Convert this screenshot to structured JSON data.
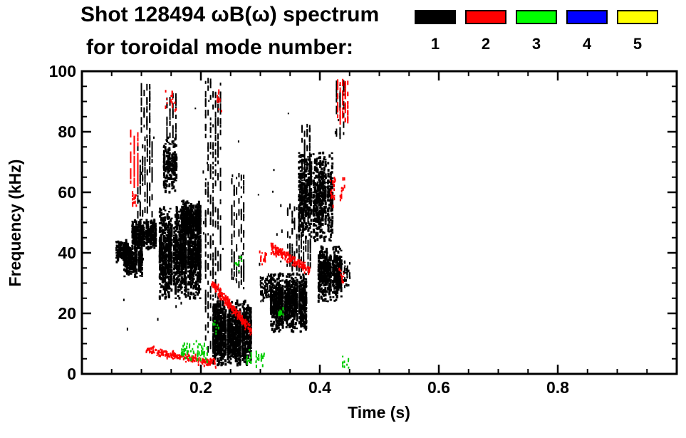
{
  "title_line1": "Shot 128494 ωB(ω) spectrum",
  "title_line2": "for toroidal mode number:",
  "legend": {
    "modes": [
      {
        "label": "1",
        "color": "#000000"
      },
      {
        "label": "2",
        "color": "#ff0000"
      },
      {
        "label": "3",
        "color": "#00ff00"
      },
      {
        "label": "4",
        "color": "#0000ff"
      },
      {
        "label": "5",
        "color": "#ffff00"
      }
    ]
  },
  "axes": {
    "x": {
      "label": "Time (s)",
      "range": [
        0,
        1.0
      ],
      "major_ticks": [
        0.2,
        0.4,
        0.6,
        0.8
      ],
      "tick_labels": [
        "0.2",
        "0.4",
        "0.6",
        "0.8"
      ],
      "minor_step": 0.05
    },
    "y": {
      "label": "Frequency (kHz)",
      "range": [
        0,
        100
      ],
      "major_ticks": [
        0,
        20,
        40,
        60,
        80,
        100
      ],
      "tick_labels": [
        "0",
        "20",
        "40",
        "60",
        "80",
        "100"
      ],
      "minor_step": 5
    }
  },
  "chart_data": {
    "type": "scatter",
    "title": "Shot 128494 ωB(ω) spectrum for toroidal mode number 1-5",
    "xlabel": "Time (s)",
    "ylabel": "Frequency (kHz)",
    "xlim": [
      0,
      1.0
    ],
    "ylim": [
      0,
      100
    ],
    "grid": false,
    "legend_position": "top-right",
    "series": [
      {
        "name": "n=1",
        "color": "#000000",
        "clusters": [
          {
            "shape": "blob",
            "t": [
              0.055,
              0.078
            ],
            "f": [
              37,
              44
            ],
            "n": 140,
            "size": 3
          },
          {
            "shape": "blob",
            "t": [
              0.068,
              0.102
            ],
            "f": [
              32,
              43
            ],
            "n": 380,
            "size": 3
          },
          {
            "shape": "blob",
            "t": [
              0.082,
              0.125
            ],
            "f": [
              41,
              51
            ],
            "n": 480,
            "size": 3
          },
          {
            "shape": "vstreak",
            "t": [
              0.094,
              0.118
            ],
            "f": [
              52,
              78
            ],
            "n": 110,
            "size": 2
          },
          {
            "shape": "vstreak",
            "t": [
              0.1,
              0.114
            ],
            "f": [
              78,
              95
            ],
            "n": 50,
            "size": 2
          },
          {
            "shape": "blob",
            "t": [
              0.135,
              0.162
            ],
            "f": [
              60,
              78
            ],
            "n": 260,
            "size": 3
          },
          {
            "shape": "blob",
            "t": [
              0.128,
              0.2
            ],
            "f": [
              25,
              55
            ],
            "n": 1700,
            "size": 3
          },
          {
            "shape": "vstreak",
            "t": [
              0.143,
              0.158
            ],
            "f": [
              78,
              92
            ],
            "n": 40,
            "size": 2
          },
          {
            "shape": "blob",
            "t": [
              0.165,
              0.2
            ],
            "f": [
              46,
              57
            ],
            "n": 420,
            "size": 3
          },
          {
            "shape": "vstreak",
            "t": [
              0.208,
              0.233
            ],
            "f": [
              8,
              97
            ],
            "n": 280,
            "size": 2
          },
          {
            "shape": "blob",
            "t": [
              0.218,
              0.285
            ],
            "f": [
              3,
              24
            ],
            "n": 1500,
            "size": 3
          },
          {
            "shape": "vstreak",
            "t": [
              0.252,
              0.272
            ],
            "f": [
              28,
              66
            ],
            "n": 100,
            "size": 2
          },
          {
            "shape": "blob",
            "t": [
              0.298,
              0.318
            ],
            "f": [
              24,
              33
            ],
            "n": 90,
            "size": 2
          },
          {
            "shape": "blob",
            "t": [
              0.315,
              0.378
            ],
            "f": [
              14,
              33
            ],
            "n": 1150,
            "size": 3
          },
          {
            "shape": "vstreak",
            "t": [
              0.346,
              0.384
            ],
            "f": [
              34,
              56
            ],
            "n": 120,
            "size": 2
          },
          {
            "shape": "blob",
            "t": [
              0.362,
              0.422
            ],
            "f": [
              44,
              73
            ],
            "n": 950,
            "size": 3
          },
          {
            "shape": "vstreak",
            "t": [
              0.37,
              0.383
            ],
            "f": [
              58,
              82
            ],
            "n": 70,
            "size": 2
          },
          {
            "shape": "blob",
            "t": [
              0.395,
              0.437
            ],
            "f": [
              24,
              42
            ],
            "n": 620,
            "size": 3
          },
          {
            "shape": "vstreak",
            "t": [
              0.428,
              0.44
            ],
            "f": [
              78,
              97
            ],
            "n": 40,
            "size": 2
          },
          {
            "shape": "blob",
            "t": [
              0.433,
              0.452
            ],
            "f": [
              28,
              38
            ],
            "n": 50,
            "size": 2
          },
          {
            "shape": "blob",
            "t": [
              0.05,
              0.47
            ],
            "f": [
              2,
              96
            ],
            "n": 45,
            "size": 2
          }
        ]
      },
      {
        "name": "n=2",
        "color": "#ff0000",
        "clusters": [
          {
            "shape": "vstreak",
            "t": [
              0.082,
              0.094
            ],
            "f": [
              62,
              80
            ],
            "n": 60,
            "size": 2
          },
          {
            "shape": "blob",
            "t": [
              0.083,
              0.093
            ],
            "f": [
              55,
              60
            ],
            "n": 20,
            "size": 2
          },
          {
            "shape": "blob",
            "t": [
              0.138,
              0.165
            ],
            "f": [
              87,
              94
            ],
            "n": 22,
            "size": 2
          },
          {
            "shape": "line",
            "t": [
              0.108,
              0.225
            ],
            "f": [
              8,
              3.5
            ],
            "n": 230,
            "size": 2,
            "jitter": 1.2
          },
          {
            "shape": "line",
            "t": [
              0.218,
              0.285
            ],
            "f": [
              30,
              14
            ],
            "n": 240,
            "size": 2,
            "jitter": 1.6
          },
          {
            "shape": "line",
            "t": [
              0.318,
              0.383
            ],
            "f": [
              42,
              34
            ],
            "n": 210,
            "size": 2,
            "jitter": 1.6
          },
          {
            "shape": "vstreak",
            "t": [
              0.43,
              0.447
            ],
            "f": [
              83,
              97
            ],
            "n": 60,
            "size": 2
          },
          {
            "shape": "blob",
            "t": [
              0.415,
              0.428
            ],
            "f": [
              54,
              66
            ],
            "n": 28,
            "size": 2
          },
          {
            "shape": "blob",
            "t": [
              0.432,
              0.445
            ],
            "f": [
              56,
              66
            ],
            "n": 18,
            "size": 2
          },
          {
            "shape": "blob",
            "t": [
              0.225,
              0.236
            ],
            "f": [
              85,
              96
            ],
            "n": 12,
            "size": 2
          },
          {
            "shape": "blob",
            "t": [
              0.296,
              0.312
            ],
            "f": [
              36,
              41
            ],
            "n": 18,
            "size": 2
          },
          {
            "shape": "blob",
            "t": [
              0.43,
              0.444
            ],
            "f": [
              28,
              36
            ],
            "n": 12,
            "size": 2
          }
        ]
      },
      {
        "name": "n=3",
        "color": "#00cc00",
        "clusters": [
          {
            "shape": "blob",
            "t": [
              0.165,
              0.212
            ],
            "f": [
              4,
              11
            ],
            "n": 70,
            "size": 2
          },
          {
            "shape": "blob",
            "t": [
              0.275,
              0.308
            ],
            "f": [
              2,
              8
            ],
            "n": 40,
            "size": 2
          },
          {
            "shape": "blob",
            "t": [
              0.328,
              0.34
            ],
            "f": [
              17,
              22
            ],
            "n": 12,
            "size": 2
          },
          {
            "shape": "blob",
            "t": [
              0.255,
              0.27
            ],
            "f": [
              34,
              41
            ],
            "n": 10,
            "size": 2
          },
          {
            "shape": "blob",
            "t": [
              0.436,
              0.45
            ],
            "f": [
              2,
              6
            ],
            "n": 10,
            "size": 2
          },
          {
            "shape": "blob",
            "t": [
              0.218,
              0.232
            ],
            "f": [
              12,
              18
            ],
            "n": 10,
            "size": 2
          }
        ]
      },
      {
        "name": "n=4",
        "color": "#0000ff",
        "clusters": []
      },
      {
        "name": "n=5",
        "color": "#ffff00",
        "clusters": []
      }
    ]
  }
}
